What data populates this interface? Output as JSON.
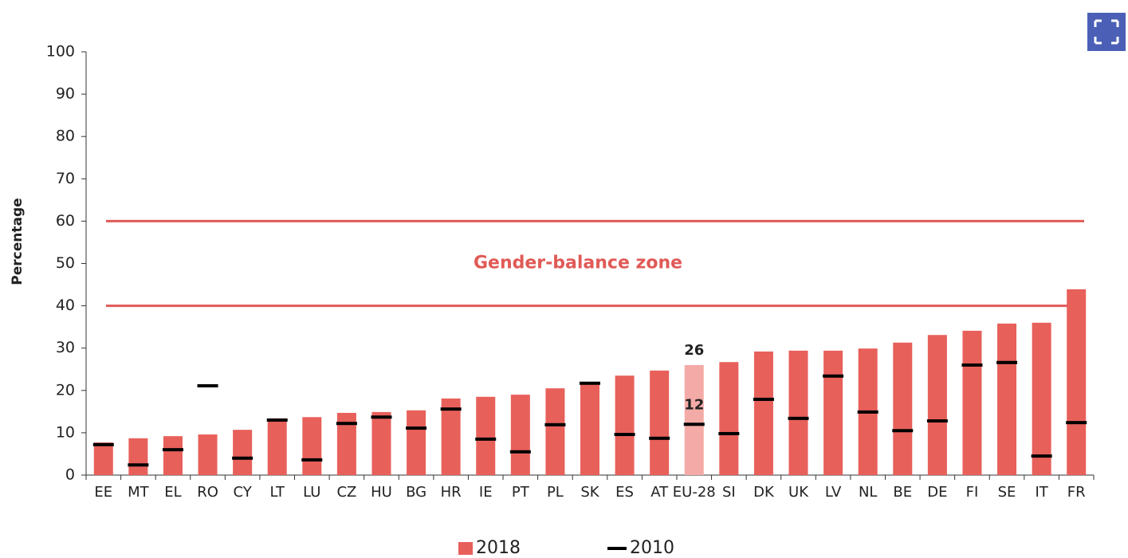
{
  "chart_data": {
    "type": "bar",
    "y_label": "Percentage",
    "categories": [
      "EE",
      "MT",
      "EL",
      "RO",
      "CY",
      "LT",
      "LU",
      "CZ",
      "HU",
      "BG",
      "HR",
      "IE",
      "PT",
      "PL",
      "SK",
      "ES",
      "AT",
      "EU-28",
      "SI",
      "DK",
      "UK",
      "LV",
      "NL",
      "BE",
      "DE",
      "FI",
      "SE",
      "IT",
      "FR"
    ],
    "series": [
      {
        "name": "2018",
        "style": "bar",
        "color": "#e8605a",
        "values": [
          7.7,
          8.7,
          9.2,
          9.6,
          10.7,
          13.4,
          13.7,
          14.7,
          14.9,
          15.3,
          18.1,
          18.5,
          19.0,
          20.5,
          22.0,
          23.5,
          24.7,
          26,
          26.7,
          29.2,
          29.4,
          29.4,
          29.9,
          31.3,
          33.1,
          34.1,
          35.8,
          36.0,
          43.9
        ]
      },
      {
        "name": "2010",
        "style": "marker",
        "color": "#000000",
        "values": [
          7.2,
          2.4,
          6.0,
          21.1,
          4.0,
          13.0,
          3.6,
          12.2,
          13.7,
          11.1,
          15.6,
          8.5,
          5.5,
          11.9,
          21.7,
          9.6,
          8.7,
          12,
          9.8,
          17.9,
          13.4,
          23.4,
          14.9,
          10.5,
          12.8,
          26.0,
          26.6,
          4.5,
          12.4
        ]
      }
    ],
    "highlight": "EU-28",
    "highlight_color": "#f4aaa6",
    "reference_lines": [
      40,
      60
    ],
    "reference_color": "#e05a57",
    "annotation": "Gender-balance zone",
    "ylim": [
      0,
      100
    ],
    "yticks": [
      0,
      10,
      20,
      30,
      40,
      50,
      60,
      70,
      80,
      90,
      100
    ],
    "legend": "bottom"
  }
}
